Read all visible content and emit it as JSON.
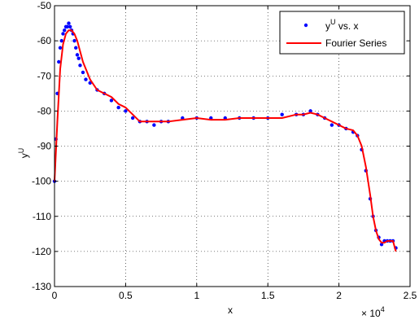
{
  "chart_data": {
    "type": "scatter",
    "title": "",
    "xlabel": "x",
    "ylabel": "y^U",
    "ylabel_base": "y",
    "ylabel_sup": "U",
    "x_multiplier_label": "× 10",
    "x_multiplier_exp": "4",
    "xlim": [
      0,
      2.5
    ],
    "ylim": [
      -130,
      -50
    ],
    "grid": true,
    "legend_position": "top-right",
    "xticks": [
      "0",
      "0.5",
      "1",
      "1.5",
      "2",
      "2.5"
    ],
    "yticks": [
      "-50",
      "-60",
      "-70",
      "-80",
      "-90",
      "-100",
      "-110",
      "-120",
      "-130"
    ],
    "legend": [
      {
        "label_base": "y",
        "label_sup": "U",
        "label_rest": " vs. x",
        "kind": "marker",
        "color": "#0000ff"
      },
      {
        "label_base": "Fourier Series",
        "label_sup": "",
        "label_rest": "",
        "kind": "line",
        "color": "#ff0000"
      }
    ],
    "series": [
      {
        "name": "y^U vs. x",
        "kind": "scatter",
        "color": "#0000ff",
        "x": [
          0.0,
          0.01,
          0.02,
          0.03,
          0.04,
          0.05,
          0.06,
          0.07,
          0.08,
          0.09,
          0.1,
          0.11,
          0.12,
          0.13,
          0.14,
          0.15,
          0.16,
          0.17,
          0.18,
          0.2,
          0.22,
          0.25,
          0.3,
          0.35,
          0.4,
          0.45,
          0.5,
          0.55,
          0.6,
          0.65,
          0.7,
          0.75,
          0.8,
          0.9,
          1.0,
          1.1,
          1.2,
          1.3,
          1.4,
          1.5,
          1.6,
          1.7,
          1.75,
          1.8,
          1.85,
          1.9,
          1.95,
          2.0,
          2.05,
          2.1,
          2.13,
          2.16,
          2.19,
          2.22,
          2.24,
          2.26,
          2.28,
          2.3,
          2.32,
          2.34,
          2.36,
          2.38,
          2.4
        ],
        "y": [
          -100,
          -88,
          -75,
          -66,
          -62,
          -60,
          -58,
          -57,
          -56,
          -56,
          -55,
          -56,
          -57,
          -58,
          -60,
          -62,
          -64,
          -65,
          -67,
          -69,
          -71,
          -72,
          -74,
          -75,
          -77,
          -79,
          -80,
          -82,
          -83,
          -83,
          -84,
          -83,
          -83,
          -82,
          -82,
          -82,
          -82,
          -82,
          -82,
          -82,
          -81,
          -81,
          -81,
          -80,
          -81,
          -82,
          -84,
          -84,
          -85,
          -86,
          -87,
          -91,
          -97,
          -105,
          -110,
          -114,
          -116,
          -118,
          -117,
          -117,
          -117,
          -117,
          -119
        ]
      },
      {
        "name": "Fourier Series",
        "kind": "line",
        "color": "#ff0000",
        "x": [
          0.0,
          0.02,
          0.04,
          0.06,
          0.08,
          0.1,
          0.12,
          0.14,
          0.16,
          0.18,
          0.2,
          0.25,
          0.3,
          0.35,
          0.4,
          0.45,
          0.5,
          0.55,
          0.6,
          0.65,
          0.7,
          0.8,
          0.9,
          1.0,
          1.1,
          1.2,
          1.3,
          1.4,
          1.5,
          1.6,
          1.7,
          1.75,
          1.8,
          1.85,
          1.9,
          1.95,
          2.0,
          2.05,
          2.1,
          2.13,
          2.16,
          2.19,
          2.22,
          2.24,
          2.26,
          2.28,
          2.3,
          2.32,
          2.34,
          2.36,
          2.38,
          2.4
        ],
        "y": [
          -100,
          -83,
          -68,
          -61,
          -58,
          -57,
          -57,
          -58,
          -60,
          -63,
          -66,
          -71,
          -74,
          -75,
          -76,
          -78,
          -79,
          -81,
          -83,
          -83,
          -83,
          -83,
          -82.5,
          -82,
          -82.5,
          -82.5,
          -82,
          -82,
          -82,
          -82,
          -81,
          -81,
          -80.5,
          -81,
          -82,
          -83,
          -84,
          -85,
          -85.5,
          -87,
          -90,
          -96,
          -104,
          -110,
          -114,
          -116.5,
          -117.5,
          -117.5,
          -117,
          -117,
          -117,
          -120
        ]
      }
    ]
  }
}
